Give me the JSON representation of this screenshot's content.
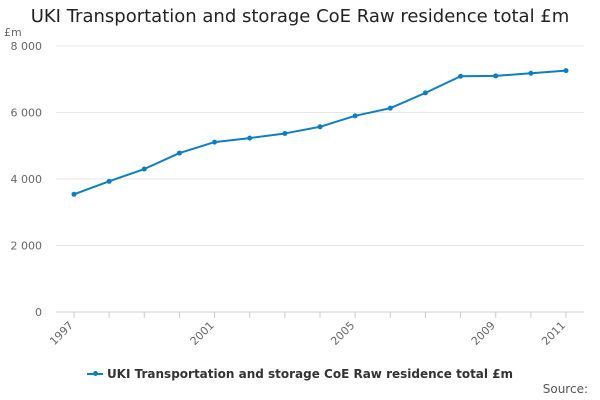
{
  "chart_data": {
    "type": "line",
    "title": "UKI Transportation and storage CoE Raw residence total £m",
    "ylabel": "£m",
    "xlabel": "",
    "ylim": [
      0,
      8000
    ],
    "yticks": [
      0,
      2000,
      4000,
      6000,
      8000
    ],
    "ytick_labels": [
      "0",
      "2 000",
      "4 000",
      "6 000",
      "8 000"
    ],
    "xlim": [
      1997,
      2011
    ],
    "xticks": [
      1997,
      2001,
      2005,
      2009,
      2011
    ],
    "xtick_labels": [
      "1997",
      "2001",
      "2005",
      "2009",
      "2011"
    ],
    "grid": true,
    "series": [
      {
        "name": "UKI Transportation and storage CoE Raw residence total £m",
        "color": "#0e7ebf",
        "x": [
          1997,
          1998,
          1999,
          2000,
          2001,
          2002,
          2003,
          2004,
          2005,
          2006,
          2007,
          2008,
          2009,
          2010,
          2011
        ],
        "values": [
          3540,
          3930,
          4300,
          4780,
          5110,
          5230,
          5370,
          5570,
          5900,
          6130,
          6590,
          7090,
          7100,
          7180,
          7260
        ]
      }
    ]
  },
  "legend": {
    "label": "UKI Transportation and storage CoE Raw residence total £m"
  },
  "source": {
    "label": "Source:"
  }
}
